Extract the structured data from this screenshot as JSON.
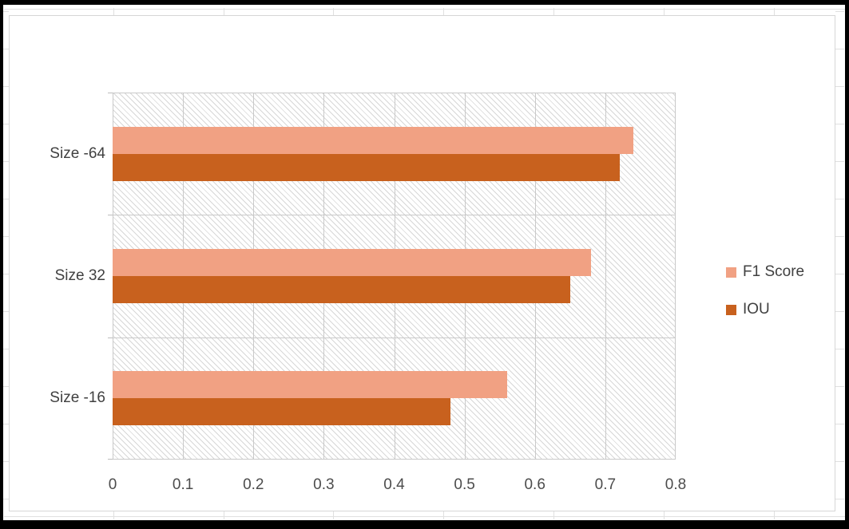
{
  "chart_data": {
    "type": "bar",
    "orientation": "horizontal",
    "title": "",
    "xlabel": "",
    "ylabel": "",
    "categories": [
      "Size -64",
      "Size 32",
      "Size -16"
    ],
    "series": [
      {
        "name": "F1 Score",
        "color": "#F1A183",
        "values": [
          0.74,
          0.68,
          0.56
        ]
      },
      {
        "name": "IOU",
        "color": "#C8611E",
        "values": [
          0.72,
          0.65,
          0.48
        ]
      }
    ],
    "xlim": [
      0,
      0.8
    ],
    "x_ticks": [
      0,
      0.1,
      0.2,
      0.3,
      0.4,
      0.5,
      0.6,
      0.7,
      0.8
    ],
    "x_tick_labels": [
      "0",
      "0.1",
      "0.2",
      "0.3",
      "0.4",
      "0.5",
      "0.6",
      "0.7",
      "0.8"
    ],
    "grid": "vertical-major-and-category-boundaries",
    "legend_position": "right",
    "plot_area_fill": "light-downward-diagonal-hatch"
  },
  "colors": {
    "f1_score": "#F1A183",
    "iou": "#C8611E",
    "gridline": "#c9c9c9",
    "hatch_line": "#d7d7d7",
    "chart_border": "#d6d6d6",
    "axis_text": "#404040",
    "frame": "#000000"
  }
}
